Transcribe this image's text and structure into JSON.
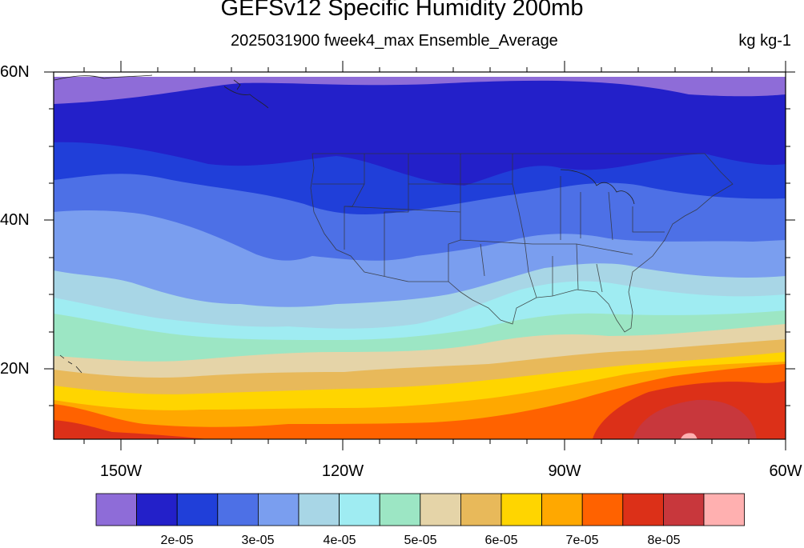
{
  "title": "GEFSv12 Specific Humidity 200mb",
  "subtitle": "2025031900 fweek4_max Ensemble_Average",
  "units": "kg kg-1",
  "lat_labels": [
    "60N",
    "40N",
    "20N"
  ],
  "lon_labels": [
    "150W",
    "120W",
    "90W",
    "60W"
  ],
  "colorbar": {
    "colors": [
      "#8e6cd8",
      "#2320c9",
      "#203fd9",
      "#4d70e6",
      "#7a9eef",
      "#a8d6e6",
      "#9fecf2",
      "#9ce6c4",
      "#e5d4a8",
      "#e8b95a",
      "#ffd500",
      "#ffa800",
      "#ff6200",
      "#dc3018",
      "#c8373c",
      "#ffb0b0"
    ],
    "labels": [
      "2e-05",
      "3e-05",
      "4e-05",
      "5e-05",
      "6e-05",
      "7e-05",
      "8e-05"
    ]
  },
  "legend": {
    "band_colors": [
      "#8e6cd8",
      "#2320c9",
      "#203fd9",
      "#4d70e6",
      "#7a9eef",
      "#a8d6e6",
      "#9fecf2",
      "#9ce6c4",
      "#e5d4a8",
      "#e8b95a",
      "#ffd500",
      "#ffa800",
      "#ff6200",
      "#dc3018",
      "#c8373c"
    ]
  }
}
